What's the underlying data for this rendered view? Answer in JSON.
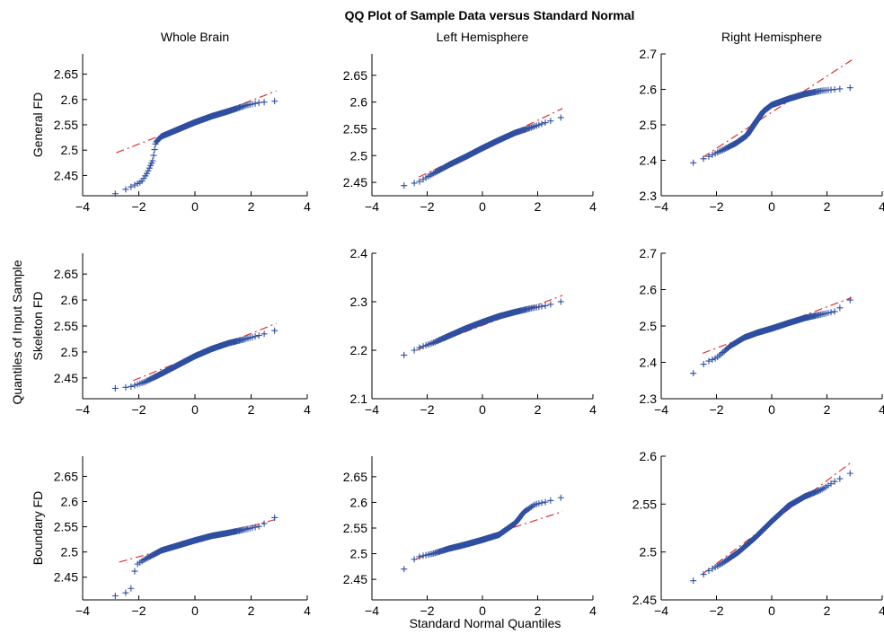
{
  "figure": {
    "title": "QQ Plot of Sample Data versus Standard Normal",
    "xlabel": "Standard Normal Quantiles",
    "ylabel": "Quantiles of Input Sample",
    "column_titles": [
      "Whole Brain",
      "Left Hemisphere",
      "Right Hemisphere"
    ],
    "row_labels": [
      "General FD",
      "Skeleton FD",
      "Boundary FD"
    ]
  },
  "colors": {
    "points": "#2f4fa0",
    "reference_line": "#e03030",
    "axes": "#000000"
  },
  "chart_data": [
    {
      "type": "scatter",
      "row": 0,
      "col": 0,
      "title": "Whole Brain",
      "ylabel": "General FD",
      "xlim": [
        -4,
        4
      ],
      "ylim": [
        2.41,
        2.69
      ],
      "xticks": [
        "−4",
        "−2",
        "0",
        "2",
        "4"
      ],
      "yticks": [
        {
          "v": 2.45,
          "label": "2.45"
        },
        {
          "v": 2.5,
          "label": "2.5"
        },
        {
          "v": 2.55,
          "label": "2.55"
        },
        {
          "v": 2.6,
          "label": "2.6"
        },
        {
          "v": 2.65,
          "label": "2.65"
        }
      ],
      "reference_line": {
        "x": [
          -2.8,
          2.9
        ],
        "y": [
          2.495,
          2.617
        ]
      },
      "qq_knots": [
        {
          "x": -2.8,
          "y": 2.414
        },
        {
          "x": -2.3,
          "y": 2.427
        },
        {
          "x": -1.9,
          "y": 2.438
        },
        {
          "x": -1.7,
          "y": 2.455
        },
        {
          "x": -1.5,
          "y": 2.48
        },
        {
          "x": -1.4,
          "y": 2.515
        },
        {
          "x": -1.2,
          "y": 2.527
        },
        {
          "x": -0.6,
          "y": 2.541
        },
        {
          "x": 0,
          "y": 2.555
        },
        {
          "x": 0.6,
          "y": 2.567
        },
        {
          "x": 1.2,
          "y": 2.577
        },
        {
          "x": 1.8,
          "y": 2.588
        },
        {
          "x": 2.3,
          "y": 2.594
        },
        {
          "x": 2.9,
          "y": 2.597
        }
      ]
    },
    {
      "type": "scatter",
      "row": 0,
      "col": 1,
      "title": "Left Hemisphere",
      "ylabel": "",
      "xlim": [
        -4,
        4
      ],
      "ylim": [
        2.425,
        2.69
      ],
      "xticks": [
        "−4",
        "−2",
        "0",
        "2",
        "4"
      ],
      "yticks": [
        {
          "v": 2.45,
          "label": "2.45"
        },
        {
          "v": 2.5,
          "label": "2.5"
        },
        {
          "v": 2.55,
          "label": "2.55"
        },
        {
          "v": 2.6,
          "label": "2.6"
        },
        {
          "v": 2.65,
          "label": "2.65"
        }
      ],
      "reference_line": {
        "x": [
          -2.3,
          2.9
        ],
        "y": [
          2.46,
          2.588
        ]
      },
      "qq_knots": [
        {
          "x": -2.8,
          "y": 2.444
        },
        {
          "x": -2.3,
          "y": 2.451
        },
        {
          "x": -1.8,
          "y": 2.466
        },
        {
          "x": -1.2,
          "y": 2.483
        },
        {
          "x": -0.6,
          "y": 2.498
        },
        {
          "x": 0,
          "y": 2.514
        },
        {
          "x": 0.6,
          "y": 2.529
        },
        {
          "x": 1.2,
          "y": 2.543
        },
        {
          "x": 1.8,
          "y": 2.553
        },
        {
          "x": 2.3,
          "y": 2.562
        },
        {
          "x": 2.9,
          "y": 2.572
        }
      ]
    },
    {
      "type": "scatter",
      "row": 0,
      "col": 2,
      "title": "Right Hemisphere",
      "ylabel": "",
      "xlim": [
        -4,
        4
      ],
      "ylim": [
        2.3,
        2.7
      ],
      "xticks": [
        "−4",
        "−2",
        "0",
        "2",
        "4"
      ],
      "yticks": [
        {
          "v": 2.3,
          "label": "2.3"
        },
        {
          "v": 2.4,
          "label": "2.4"
        },
        {
          "v": 2.5,
          "label": "2.5"
        },
        {
          "v": 2.6,
          "label": "2.6"
        },
        {
          "v": 2.7,
          "label": "2.7"
        }
      ],
      "reference_line": {
        "x": [
          -2.5,
          2.9
        ],
        "y": [
          2.408,
          2.683
        ]
      },
      "qq_knots": [
        {
          "x": -2.8,
          "y": 2.393
        },
        {
          "x": -2.3,
          "y": 2.41
        },
        {
          "x": -1.8,
          "y": 2.428
        },
        {
          "x": -1.3,
          "y": 2.448
        },
        {
          "x": -0.9,
          "y": 2.47
        },
        {
          "x": -0.6,
          "y": 2.505
        },
        {
          "x": -0.3,
          "y": 2.538
        },
        {
          "x": 0,
          "y": 2.556
        },
        {
          "x": 0.6,
          "y": 2.573
        },
        {
          "x": 1.2,
          "y": 2.587
        },
        {
          "x": 1.8,
          "y": 2.596
        },
        {
          "x": 2.3,
          "y": 2.6
        },
        {
          "x": 2.9,
          "y": 2.605
        }
      ]
    },
    {
      "type": "scatter",
      "row": 1,
      "col": 0,
      "title": "",
      "ylabel": "Skeleton FD",
      "xlim": [
        -4,
        4
      ],
      "ylim": [
        2.41,
        2.69
      ],
      "xticks": [
        "−4",
        "−2",
        "0",
        "2",
        "4"
      ],
      "yticks": [
        {
          "v": 2.45,
          "label": "2.45"
        },
        {
          "v": 2.5,
          "label": "2.5"
        },
        {
          "v": 2.55,
          "label": "2.55"
        },
        {
          "v": 2.6,
          "label": "2.6"
        },
        {
          "v": 2.65,
          "label": "2.65"
        }
      ],
      "reference_line": {
        "x": [
          -2.2,
          2.9
        ],
        "y": [
          2.445,
          2.555
        ]
      },
      "qq_knots": [
        {
          "x": -2.8,
          "y": 2.43
        },
        {
          "x": -2.3,
          "y": 2.433
        },
        {
          "x": -1.8,
          "y": 2.442
        },
        {
          "x": -1.2,
          "y": 2.458
        },
        {
          "x": -0.6,
          "y": 2.475
        },
        {
          "x": 0,
          "y": 2.492
        },
        {
          "x": 0.6,
          "y": 2.506
        },
        {
          "x": 1.2,
          "y": 2.517
        },
        {
          "x": 1.8,
          "y": 2.525
        },
        {
          "x": 2.3,
          "y": 2.532
        },
        {
          "x": 2.9,
          "y": 2.542
        }
      ]
    },
    {
      "type": "scatter",
      "row": 1,
      "col": 1,
      "title": "",
      "ylabel": "",
      "xlim": [
        -4,
        4
      ],
      "ylim": [
        2.1,
        2.4
      ],
      "xticks": [
        "−4",
        "−2",
        "0",
        "2",
        "4"
      ],
      "yticks": [
        {
          "v": 2.1,
          "label": "2.1"
        },
        {
          "v": 2.2,
          "label": "2.2"
        },
        {
          "v": 2.3,
          "label": "2.3"
        },
        {
          "v": 2.4,
          "label": "2.4"
        }
      ],
      "reference_line": {
        "x": [
          -2.4,
          2.9
        ],
        "y": [
          2.2,
          2.313
        ]
      },
      "qq_knots": [
        {
          "x": -2.8,
          "y": 2.19
        },
        {
          "x": -2.3,
          "y": 2.205
        },
        {
          "x": -1.8,
          "y": 2.215
        },
        {
          "x": -1.2,
          "y": 2.23
        },
        {
          "x": -0.6,
          "y": 2.245
        },
        {
          "x": 0,
          "y": 2.258
        },
        {
          "x": 0.6,
          "y": 2.27
        },
        {
          "x": 1.2,
          "y": 2.279
        },
        {
          "x": 1.8,
          "y": 2.287
        },
        {
          "x": 2.3,
          "y": 2.292
        },
        {
          "x": 2.9,
          "y": 2.301
        }
      ]
    },
    {
      "type": "scatter",
      "row": 1,
      "col": 2,
      "title": "",
      "ylabel": "",
      "xlim": [
        -4,
        4
      ],
      "ylim": [
        2.3,
        2.7
      ],
      "xticks": [
        "−4",
        "−2",
        "0",
        "2",
        "4"
      ],
      "yticks": [
        {
          "v": 2.3,
          "label": "2.3"
        },
        {
          "v": 2.4,
          "label": "2.4"
        },
        {
          "v": 2.5,
          "label": "2.5"
        },
        {
          "v": 2.6,
          "label": "2.6"
        },
        {
          "v": 2.7,
          "label": "2.7"
        }
      ],
      "reference_line": {
        "x": [
          -2.5,
          2.9
        ],
        "y": [
          2.425,
          2.578
        ]
      },
      "qq_knots": [
        {
          "x": -2.8,
          "y": 2.37
        },
        {
          "x": -2.4,
          "y": 2.4
        },
        {
          "x": -2.0,
          "y": 2.412
        },
        {
          "x": -1.5,
          "y": 2.445
        },
        {
          "x": -1.0,
          "y": 2.468
        },
        {
          "x": -0.5,
          "y": 2.482
        },
        {
          "x": 0,
          "y": 2.493
        },
        {
          "x": 0.6,
          "y": 2.508
        },
        {
          "x": 1.2,
          "y": 2.522
        },
        {
          "x": 1.8,
          "y": 2.532
        },
        {
          "x": 2.3,
          "y": 2.54
        },
        {
          "x": 2.9,
          "y": 2.575
        }
      ]
    },
    {
      "type": "scatter",
      "row": 2,
      "col": 0,
      "title": "",
      "ylabel": "Boundary FD",
      "xlim": [
        -4,
        4
      ],
      "ylim": [
        2.405,
        2.69
      ],
      "xticks": [
        "−4",
        "−2",
        "0",
        "2",
        "4"
      ],
      "yticks": [
        {
          "v": 2.45,
          "label": "2.45"
        },
        {
          "v": 2.5,
          "label": "2.5"
        },
        {
          "v": 2.55,
          "label": "2.55"
        },
        {
          "v": 2.6,
          "label": "2.6"
        },
        {
          "v": 2.65,
          "label": "2.65"
        }
      ],
      "reference_line": {
        "x": [
          -2.7,
          2.9
        ],
        "y": [
          2.48,
          2.565
        ]
      },
      "qq_knots": [
        {
          "x": -2.8,
          "y": 2.413
        },
        {
          "x": -2.3,
          "y": 2.422
        },
        {
          "x": -2.1,
          "y": 2.474
        },
        {
          "x": -1.8,
          "y": 2.485
        },
        {
          "x": -1.2,
          "y": 2.503
        },
        {
          "x": -0.6,
          "y": 2.513
        },
        {
          "x": 0,
          "y": 2.523
        },
        {
          "x": 0.6,
          "y": 2.532
        },
        {
          "x": 1.2,
          "y": 2.538
        },
        {
          "x": 1.8,
          "y": 2.545
        },
        {
          "x": 2.3,
          "y": 2.551
        },
        {
          "x": 2.9,
          "y": 2.57
        }
      ]
    },
    {
      "type": "scatter",
      "row": 2,
      "col": 1,
      "title": "",
      "ylabel": "",
      "xlim": [
        -4,
        4
      ],
      "ylim": [
        2.41,
        2.69
      ],
      "xticks": [
        "−4",
        "−2",
        "0",
        "2",
        "4"
      ],
      "yticks": [
        {
          "v": 2.45,
          "label": "2.45"
        },
        {
          "v": 2.5,
          "label": "2.5"
        },
        {
          "v": 2.55,
          "label": "2.55"
        },
        {
          "v": 2.6,
          "label": "2.6"
        },
        {
          "v": 2.65,
          "label": "2.65"
        }
      ],
      "reference_line": {
        "x": [
          -2.4,
          2.9
        ],
        "y": [
          2.49,
          2.582
        ]
      },
      "qq_knots": [
        {
          "x": -2.8,
          "y": 2.47
        },
        {
          "x": -2.4,
          "y": 2.493
        },
        {
          "x": -1.8,
          "y": 2.5
        },
        {
          "x": -1.2,
          "y": 2.51
        },
        {
          "x": -0.6,
          "y": 2.518
        },
        {
          "x": 0,
          "y": 2.527
        },
        {
          "x": 0.6,
          "y": 2.537
        },
        {
          "x": 1.2,
          "y": 2.56
        },
        {
          "x": 1.5,
          "y": 2.581
        },
        {
          "x": 1.9,
          "y": 2.596
        },
        {
          "x": 2.3,
          "y": 2.601
        },
        {
          "x": 2.9,
          "y": 2.61
        }
      ]
    },
    {
      "type": "scatter",
      "row": 2,
      "col": 2,
      "title": "",
      "ylabel": "",
      "xlim": [
        -4,
        4
      ],
      "ylim": [
        2.45,
        2.6
      ],
      "xticks": [
        "−4",
        "−2",
        "0",
        "2",
        "4"
      ],
      "yticks": [
        {
          "v": 2.45,
          "label": "2.45"
        },
        {
          "v": 2.5,
          "label": "2.5"
        },
        {
          "v": 2.55,
          "label": "2.55"
        },
        {
          "v": 2.6,
          "label": "2.6"
        }
      ],
      "reference_line": {
        "x": [
          -2.5,
          2.9
        ],
        "y": [
          2.477,
          2.594
        ]
      },
      "qq_knots": [
        {
          "x": -2.8,
          "y": 2.47
        },
        {
          "x": -2.3,
          "y": 2.48
        },
        {
          "x": -1.8,
          "y": 2.488
        },
        {
          "x": -1.2,
          "y": 2.5
        },
        {
          "x": -0.6,
          "y": 2.515
        },
        {
          "x": 0,
          "y": 2.532
        },
        {
          "x": 0.6,
          "y": 2.548
        },
        {
          "x": 1.2,
          "y": 2.558
        },
        {
          "x": 1.8,
          "y": 2.565
        },
        {
          "x": 2.3,
          "y": 2.574
        },
        {
          "x": 2.9,
          "y": 2.583
        }
      ]
    }
  ]
}
